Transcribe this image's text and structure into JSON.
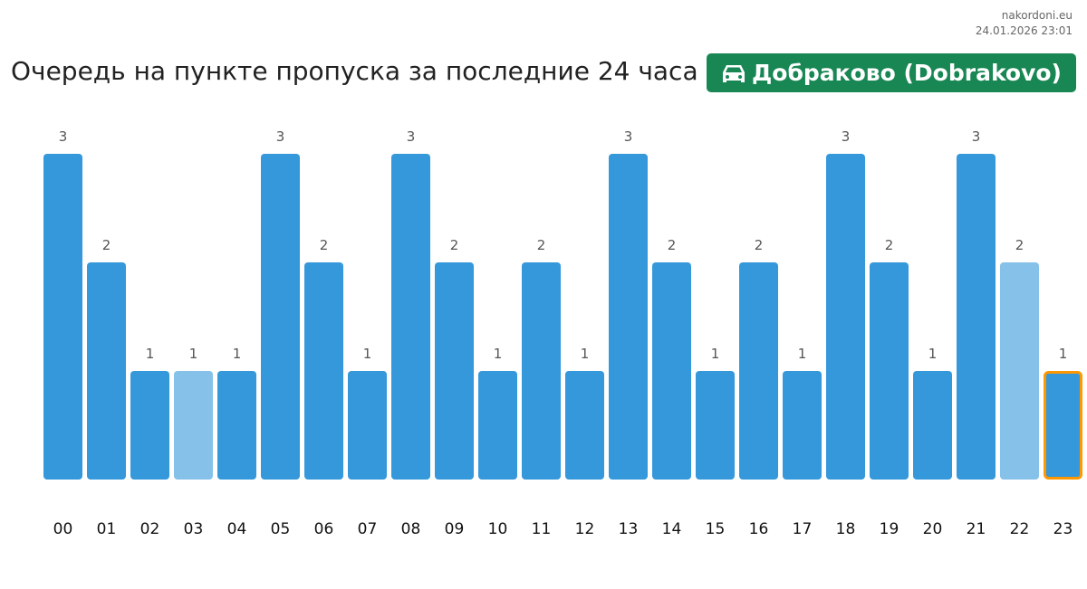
{
  "site": {
    "name": "nakordoni.eu",
    "timestamp": "24.01.2026 23:01"
  },
  "header": {
    "title": "Очередь на пункте пропуска за последние 24 часа",
    "checkpoint": "Добраково (Dobrakovo)",
    "checkpoint_icon": "car-icon"
  },
  "colors": {
    "bar": "#3498db",
    "bar_light": "#85c1e9",
    "highlight": "#ff9800",
    "badge": "#198754"
  },
  "chart_data": {
    "type": "bar",
    "title": "Очередь на пункте пропуска за последние 24 часа",
    "categories": [
      "00",
      "01",
      "02",
      "03",
      "04",
      "05",
      "06",
      "07",
      "08",
      "09",
      "10",
      "11",
      "12",
      "13",
      "14",
      "15",
      "16",
      "17",
      "18",
      "19",
      "20",
      "21",
      "22",
      "23"
    ],
    "values": [
      3,
      2,
      1,
      1,
      1,
      3,
      2,
      1,
      3,
      2,
      1,
      2,
      1,
      3,
      2,
      1,
      2,
      1,
      3,
      2,
      1,
      3,
      2,
      1
    ],
    "light_bars": [
      "03",
      "22"
    ],
    "highlighted": "23",
    "ylim": [
      0,
      3
    ],
    "grid": false
  }
}
